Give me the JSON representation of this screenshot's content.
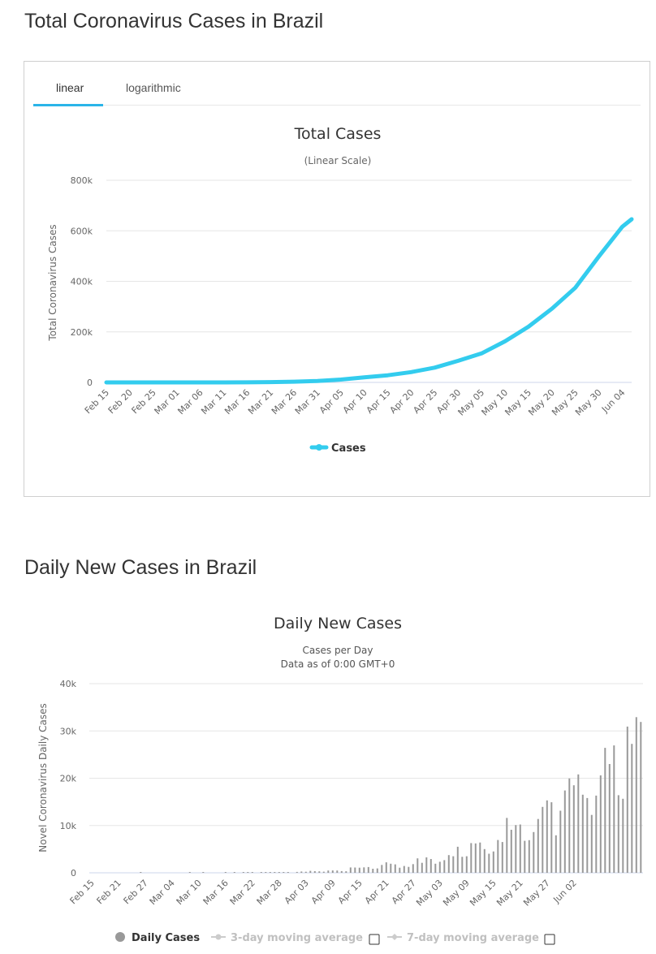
{
  "header1": {
    "title": "Total Coronavirus Cases in Brazil"
  },
  "header2": {
    "title": "Daily New Cases in Brazil"
  },
  "tabs": [
    {
      "label": "linear"
    },
    {
      "label": "logarithmic"
    }
  ],
  "colors": {
    "accent": "#2ab4e8",
    "line": "#33ccee",
    "bar": "#999999",
    "grid": "#e6e6e6"
  },
  "chart_data": [
    {
      "type": "line",
      "title": "Total Cases",
      "subtitle": "(Linear Scale)",
      "ylabel": "Total Coronavirus Cases",
      "ylim": [
        0,
        800000
      ],
      "yticks": [
        "0",
        "200k",
        "400k",
        "600k",
        "800k"
      ],
      "xticks": [
        "Feb 15",
        "Feb 20",
        "Feb 25",
        "Mar 01",
        "Mar 06",
        "Mar 11",
        "Mar 16",
        "Mar 21",
        "Mar 26",
        "Mar 31",
        "Apr 05",
        "Apr 10",
        "Apr 15",
        "Apr 20",
        "Apr 25",
        "Apr 30",
        "May 05",
        "May 10",
        "May 15",
        "May 20",
        "May 25",
        "May 30",
        "Jun 04"
      ],
      "legend": "bottom-center",
      "series": [
        {
          "name": "Cases",
          "x": [
            "Feb 15",
            "Feb 20",
            "Feb 25",
            "Mar 01",
            "Mar 06",
            "Mar 11",
            "Mar 16",
            "Mar 21",
            "Mar 26",
            "Mar 31",
            "Apr 05",
            "Apr 10",
            "Apr 15",
            "Apr 20",
            "Apr 25",
            "Apr 30",
            "May 05",
            "May 10",
            "May 15",
            "May 20",
            "May 25",
            "May 30",
            "Jun 04",
            "Jun 06"
          ],
          "values": [
            0,
            0,
            1,
            2,
            13,
            52,
            200,
            1128,
            2985,
            5717,
            11130,
            19943,
            28320,
            40743,
            58509,
            85380,
            114715,
            162699,
            220291,
            291579,
            374898,
            498440,
            615870,
            645771
          ]
        }
      ]
    },
    {
      "type": "bar",
      "title": "Daily New Cases",
      "subtitle": "Cases per Day",
      "subtitle2": "Data as of 0:00 GMT+0",
      "ylabel": "Novel Coronavirus Daily Cases",
      "ylim": [
        0,
        40000
      ],
      "yticks": [
        "0",
        "10k",
        "20k",
        "30k",
        "40k"
      ],
      "xticks": [
        "Feb 15",
        "Feb 21",
        "Feb 27",
        "Mar 04",
        "Mar 10",
        "Mar 16",
        "Mar 22",
        "Mar 28",
        "Apr 03",
        "Apr 09",
        "Apr 15",
        "Apr 21",
        "Apr 27",
        "May 03",
        "May 09",
        "May 15",
        "May 21",
        "May 27",
        "Jun 02"
      ],
      "legend": [
        "Daily Cases",
        "3-day moving average",
        "7-day moving average"
      ],
      "series": [
        {
          "name": "Daily Cases",
          "start": "Feb 15",
          "values": [
            0,
            0,
            0,
            0,
            0,
            0,
            0,
            0,
            0,
            0,
            0,
            1,
            0,
            0,
            0,
            0,
            0,
            0,
            0,
            0,
            0,
            0,
            1,
            0,
            0,
            1,
            0,
            0,
            0,
            0,
            2,
            0,
            4,
            0,
            6,
            11,
            8,
            0,
            25,
            21,
            23,
            79,
            34,
            57,
            137,
            0,
            193,
            283,
            224,
            418,
            345,
            310,
            232,
            482,
            502,
            487,
            352,
            323,
            1138,
            1119,
            1074,
            1146,
            1222,
            852,
            926,
            1661,
            2210,
            1930,
            1781,
            1089,
            1442,
            1261,
            1832,
            3058,
            2105,
            3257,
            2917,
            1927,
            2336,
            2678,
            3735,
            3503,
            5514,
            3379,
            3502,
            6276,
            6209,
            6411,
            5015,
            4026,
            4513,
            6935,
            6513,
            11602,
            9105,
            10096,
            10222,
            6760,
            6895,
            8620,
            11385,
            13944,
            15305,
            14919,
            7938,
            13140,
            17408,
            19951,
            18508,
            20803,
            16517,
            15813,
            12247,
            16324,
            20599,
            26417,
            23010,
            26928,
            16409,
            15654,
            30925,
            27263,
            32913,
            31890
          ]
        }
      ]
    }
  ]
}
